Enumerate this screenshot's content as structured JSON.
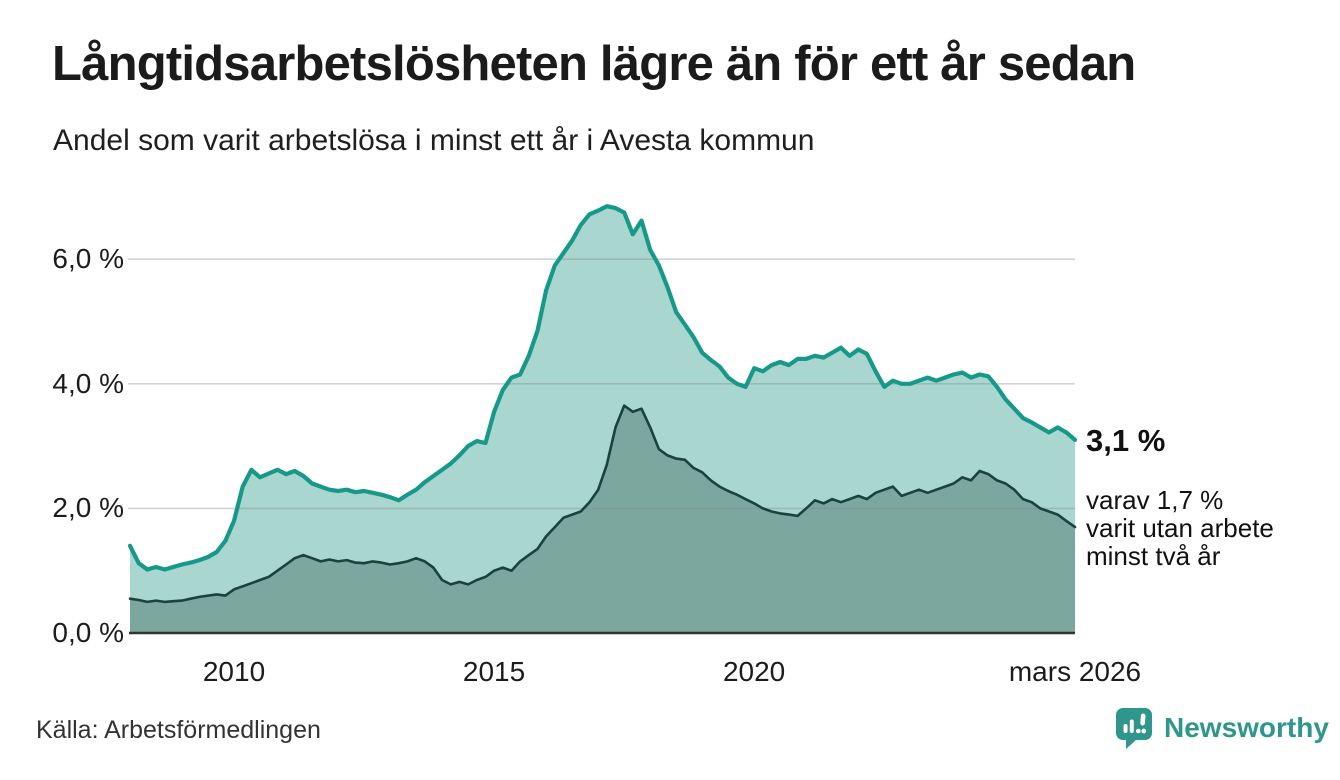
{
  "header": {
    "title": "Långtidsarbetslösheten lägre än för ett år sedan",
    "subtitle": "Andel som varit arbetslösa i minst ett år i Avesta kommun"
  },
  "annotations": {
    "latest_total": "3,1 %",
    "subseries_note": "varav 1,7 %\nvarit utan arbete\nminst två år"
  },
  "footer": {
    "source": "Källa: Arbetsförmedlingen",
    "brand": "Newsworthy"
  },
  "colors": {
    "series1_line": "#17998a",
    "series1_fill": "#a9d6ce",
    "series2_line": "#1c423c",
    "series2_fill": "#7ba79f",
    "gridline": "#8a8a8a",
    "axis": "#333333",
    "brand_teal": "#2e968b",
    "text": "#1b1b1b"
  },
  "chart_data": {
    "type": "area",
    "title": "Långtidsarbetslösheten lägre än för ett år sedan",
    "subtitle": "Andel som varit arbetslösa i minst ett år i Avesta kommun",
    "unit": "%",
    "x_start": 2008.0,
    "x_end": 2026.17,
    "x_step_years": 0.16667,
    "ylim": [
      0,
      7.2
    ],
    "grid": true,
    "yticks": [
      {
        "value": 0,
        "label": "0,0 %"
      },
      {
        "value": 2,
        "label": "2,0 %"
      },
      {
        "value": 4,
        "label": "4,0 %"
      },
      {
        "value": 6,
        "label": "6,0 %"
      }
    ],
    "xticks": [
      {
        "value": 2010,
        "label": "2010"
      },
      {
        "value": 2015,
        "label": "2015"
      },
      {
        "value": 2020,
        "label": "2020"
      },
      {
        "value": 2026.17,
        "label": "mars 2026"
      }
    ],
    "series": [
      {
        "name": "Arbetslösa minst ett år",
        "latest_label": "3,1 %",
        "latest_value": 3.1,
        "values": [
          1.4,
          1.12,
          1.02,
          1.06,
          1.02,
          1.06,
          1.1,
          1.13,
          1.17,
          1.22,
          1.3,
          1.48,
          1.8,
          2.35,
          2.62,
          2.5,
          2.56,
          2.62,
          2.55,
          2.6,
          2.52,
          2.4,
          2.35,
          2.3,
          2.28,
          2.3,
          2.26,
          2.28,
          2.25,
          2.22,
          2.18,
          2.13,
          2.22,
          2.3,
          2.42,
          2.52,
          2.62,
          2.72,
          2.85,
          3.0,
          3.08,
          3.05,
          3.55,
          3.9,
          4.1,
          4.15,
          4.45,
          4.85,
          5.5,
          5.9,
          6.1,
          6.3,
          6.55,
          6.72,
          6.78,
          6.85,
          6.82,
          6.75,
          6.4,
          6.62,
          6.15,
          5.9,
          5.55,
          5.15,
          4.95,
          4.75,
          4.5,
          4.38,
          4.28,
          4.1,
          4.0,
          3.95,
          4.25,
          4.2,
          4.3,
          4.35,
          4.3,
          4.4,
          4.4,
          4.45,
          4.42,
          4.5,
          4.58,
          4.45,
          4.55,
          4.48,
          4.2,
          3.95,
          4.05,
          4.0,
          4.0,
          4.05,
          4.1,
          4.05,
          4.1,
          4.15,
          4.18,
          4.1,
          4.15,
          4.12,
          3.95,
          3.75,
          3.6,
          3.45,
          3.38,
          3.3,
          3.22,
          3.3,
          3.22,
          3.1
        ]
      },
      {
        "name": "Arbetslösa minst två år",
        "latest_label": "1,7 %",
        "latest_value": 1.7,
        "values": [
          0.55,
          0.53,
          0.5,
          0.52,
          0.5,
          0.51,
          0.52,
          0.55,
          0.58,
          0.6,
          0.62,
          0.6,
          0.7,
          0.75,
          0.8,
          0.85,
          0.9,
          1.0,
          1.1,
          1.2,
          1.25,
          1.2,
          1.15,
          1.18,
          1.15,
          1.17,
          1.13,
          1.12,
          1.15,
          1.13,
          1.1,
          1.12,
          1.15,
          1.2,
          1.15,
          1.05,
          0.85,
          0.78,
          0.82,
          0.78,
          0.85,
          0.9,
          1.0,
          1.05,
          1.0,
          1.15,
          1.25,
          1.35,
          1.55,
          1.7,
          1.85,
          1.9,
          1.95,
          2.1,
          2.3,
          2.7,
          3.3,
          3.65,
          3.55,
          3.6,
          3.3,
          2.95,
          2.85,
          2.8,
          2.78,
          2.65,
          2.58,
          2.45,
          2.35,
          2.28,
          2.22,
          2.15,
          2.08,
          2.0,
          1.95,
          1.92,
          1.9,
          1.88,
          2.0,
          2.13,
          2.08,
          2.15,
          2.1,
          2.15,
          2.2,
          2.15,
          2.25,
          2.3,
          2.35,
          2.2,
          2.25,
          2.3,
          2.25,
          2.3,
          2.35,
          2.4,
          2.5,
          2.45,
          2.6,
          2.55,
          2.45,
          2.4,
          2.3,
          2.15,
          2.1,
          2.0,
          1.95,
          1.9,
          1.8,
          1.7
        ]
      }
    ]
  }
}
